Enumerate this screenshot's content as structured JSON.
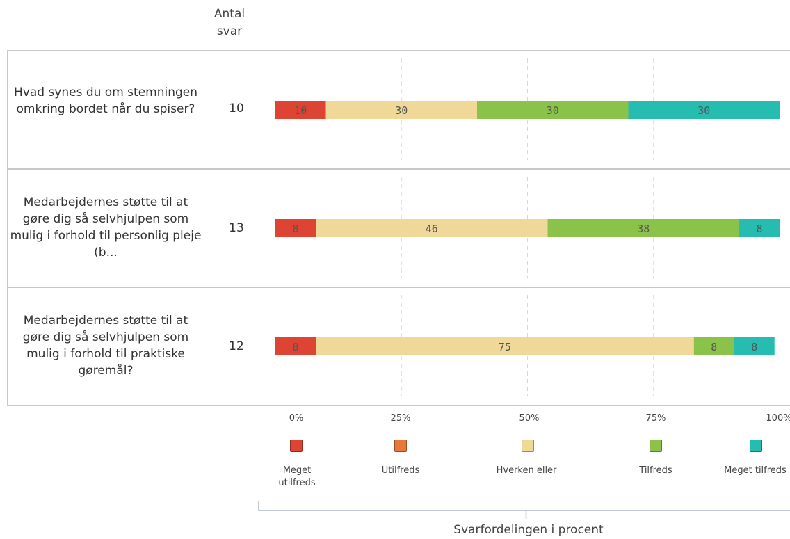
{
  "chart_data": {
    "type": "bar",
    "stacked": true,
    "orientation": "horizontal",
    "count_header": "Antal svar",
    "categories": [
      "Hvad synes du om stemningen omkring bordet når du spiser?",
      "Medarbejdernes støtte til at gøre dig så selvhjulpen som mulig i forhold til personlig pleje (b...",
      "Medarbejdernes støtte til at gøre dig så selvhjulpen som mulig i forhold til praktiske gøremål?"
    ],
    "counts": [
      "10",
      "13",
      "12"
    ],
    "series": [
      {
        "name": "Meget utilfreds",
        "color": "#dd4433",
        "values": [
          10,
          8,
          8
        ]
      },
      {
        "name": "Utilfreds",
        "color": "#e8773a",
        "values": [
          0,
          0,
          0
        ]
      },
      {
        "name": "Hverken eller",
        "color": "#f0d898",
        "values": [
          30,
          46,
          75
        ]
      },
      {
        "name": "Tilfreds",
        "color": "#8bc34a",
        "values": [
          30,
          38,
          8
        ]
      },
      {
        "name": "Meget tilfreds",
        "color": "#26bcb0",
        "values": [
          30,
          8,
          8
        ]
      }
    ],
    "xlim": [
      0,
      100
    ],
    "x_ticks": [
      "0%",
      "25%",
      "50%",
      "75%",
      "100%"
    ],
    "xlabel": "Svarfordelingen i procent",
    "legend_position": "bottom",
    "grid": true
  }
}
